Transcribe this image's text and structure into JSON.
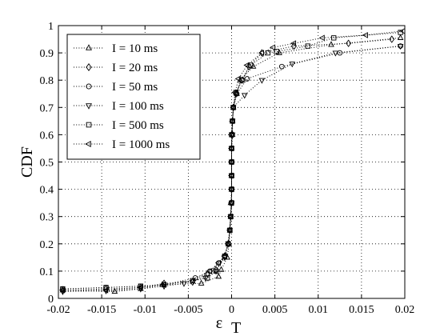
{
  "chart_data": {
    "type": "line",
    "title": "",
    "xlabel": "ε",
    "xlabel_sub": "T",
    "ylabel": "CDF",
    "xlim": [
      -0.02,
      0.02
    ],
    "ylim": [
      0,
      1
    ],
    "xticks": [
      -0.02,
      -0.015,
      -0.01,
      -0.005,
      0,
      0.005,
      0.01,
      0.015,
      0.02
    ],
    "xtick_labels": [
      "-0.02",
      "-0.015",
      "-0.01",
      "-0.005",
      "0",
      "0.005",
      "0.01",
      "0.015",
      "0.02"
    ],
    "yticks": [
      0,
      0.1,
      0.2,
      0.3,
      0.4,
      0.5,
      0.6,
      0.7,
      0.8,
      0.9,
      1
    ],
    "ytick_labels": [
      "0",
      "0.1",
      "0.2",
      "0.3",
      "0.4",
      "0.5",
      "0.6",
      "0.7",
      "0.8",
      "0.9",
      "1"
    ],
    "grid": true,
    "legend_position": "top-left",
    "series": [
      {
        "name": "I = 10 ms",
        "marker": "triangle-up",
        "points": [
          [
            -0.0195,
            0.03
          ],
          [
            -0.0135,
            0.025
          ],
          [
            -0.0105,
            0.035
          ],
          [
            -0.008,
            0.05
          ],
          [
            -0.0035,
            0.055
          ],
          [
            -0.0015,
            0.08
          ],
          [
            -0.0012,
            0.105
          ],
          [
            -0.0005,
            0.15
          ],
          [
            -0.0003,
            0.2
          ],
          [
            -0.0002,
            0.25
          ],
          [
            -0.0001,
            0.3
          ],
          [
            -0.0001,
            0.35
          ],
          [
            0,
            0.4
          ],
          [
            0,
            0.45
          ],
          [
            0,
            0.5
          ],
          [
            0,
            0.55
          ],
          [
            0.0001,
            0.6
          ],
          [
            0.0001,
            0.65
          ],
          [
            0.0002,
            0.7
          ],
          [
            0.0006,
            0.75
          ],
          [
            0.001,
            0.8
          ],
          [
            0.0025,
            0.85
          ],
          [
            0.0055,
            0.9
          ],
          [
            0.0115,
            0.93
          ],
          [
            0.0195,
            0.955
          ]
        ]
      },
      {
        "name": "I = 20 ms",
        "marker": "diamond",
        "points": [
          [
            -0.0195,
            0.03
          ],
          [
            -0.0145,
            0.035
          ],
          [
            -0.0105,
            0.04
          ],
          [
            -0.0078,
            0.055
          ],
          [
            -0.0045,
            0.06
          ],
          [
            -0.0028,
            0.09
          ],
          [
            -0.0018,
            0.105
          ],
          [
            -0.0008,
            0.155
          ],
          [
            -0.0004,
            0.2
          ],
          [
            -0.0002,
            0.25
          ],
          [
            -0.0001,
            0.3
          ],
          [
            0,
            0.35
          ],
          [
            0,
            0.4
          ],
          [
            0,
            0.45
          ],
          [
            0,
            0.5
          ],
          [
            0,
            0.55
          ],
          [
            0,
            0.6
          ],
          [
            0.0001,
            0.65
          ],
          [
            0.0002,
            0.7
          ],
          [
            0.0005,
            0.75
          ],
          [
            0.0012,
            0.8
          ],
          [
            0.002,
            0.85
          ],
          [
            0.0035,
            0.9
          ],
          [
            0.0072,
            0.925
          ],
          [
            0.0135,
            0.935
          ],
          [
            0.0185,
            0.95
          ]
        ]
      },
      {
        "name": "I = 50 ms",
        "marker": "circle",
        "points": [
          [
            -0.0195,
            0.035
          ],
          [
            -0.0145,
            0.04
          ],
          [
            -0.0105,
            0.045
          ],
          [
            -0.0078,
            0.05
          ],
          [
            -0.0042,
            0.075
          ],
          [
            -0.0025,
            0.1
          ],
          [
            -0.0015,
            0.13
          ],
          [
            -0.0008,
            0.155
          ],
          [
            -0.0004,
            0.2
          ],
          [
            -0.0002,
            0.25
          ],
          [
            -0.0001,
            0.3
          ],
          [
            0,
            0.35
          ],
          [
            0,
            0.4
          ],
          [
            0,
            0.45
          ],
          [
            0,
            0.5
          ],
          [
            0,
            0.55
          ],
          [
            0,
            0.6
          ],
          [
            0.0001,
            0.65
          ],
          [
            0.0002,
            0.7
          ],
          [
            0.0006,
            0.75
          ],
          [
            0.0018,
            0.805
          ],
          [
            0.0058,
            0.85
          ],
          [
            0.0125,
            0.9
          ],
          [
            0.0195,
            0.925
          ]
        ]
      },
      {
        "name": "I = 100 ms",
        "marker": "triangle-down",
        "points": [
          [
            -0.0195,
            0.025
          ],
          [
            -0.0145,
            0.028
          ],
          [
            -0.0105,
            0.035
          ],
          [
            -0.0078,
            0.045
          ],
          [
            -0.0055,
            0.055
          ],
          [
            -0.003,
            0.075
          ],
          [
            -0.0018,
            0.1
          ],
          [
            -0.0008,
            0.15
          ],
          [
            -0.0004,
            0.2
          ],
          [
            -0.0002,
            0.25
          ],
          [
            -0.0001,
            0.3
          ],
          [
            0,
            0.35
          ],
          [
            0,
            0.4
          ],
          [
            0,
            0.45
          ],
          [
            0,
            0.5
          ],
          [
            0,
            0.55
          ],
          [
            0.0001,
            0.6
          ],
          [
            0.0001,
            0.65
          ],
          [
            0.0002,
            0.7
          ],
          [
            0.0015,
            0.745
          ],
          [
            0.0035,
            0.8
          ],
          [
            0.007,
            0.86
          ],
          [
            0.012,
            0.9
          ],
          [
            0.0195,
            0.925
          ]
        ]
      },
      {
        "name": "I = 500 ms",
        "marker": "square",
        "points": [
          [
            -0.0195,
            0.035
          ],
          [
            -0.0145,
            0.04
          ],
          [
            -0.0105,
            0.045
          ],
          [
            -0.0078,
            0.05
          ],
          [
            -0.0045,
            0.065
          ],
          [
            -0.0028,
            0.075
          ],
          [
            -0.0018,
            0.1
          ],
          [
            -0.0008,
            0.155
          ],
          [
            -0.0004,
            0.2
          ],
          [
            -0.0002,
            0.25
          ],
          [
            -0.0001,
            0.3
          ],
          [
            0,
            0.35
          ],
          [
            0,
            0.4
          ],
          [
            0,
            0.45
          ],
          [
            0,
            0.5
          ],
          [
            0,
            0.55
          ],
          [
            0,
            0.6
          ],
          [
            0.0001,
            0.65
          ],
          [
            0.0002,
            0.7
          ],
          [
            0.0005,
            0.755
          ],
          [
            0.0012,
            0.8
          ],
          [
            0.0022,
            0.855
          ],
          [
            0.0042,
            0.9
          ],
          [
            0.0052,
            0.905
          ],
          [
            0.0088,
            0.925
          ],
          [
            0.0118,
            0.955
          ],
          [
            0.0195,
            0.975
          ]
        ]
      },
      {
        "name": "I = 1000 ms",
        "marker": "triangle-left",
        "points": [
          [
            -0.0195,
            0.03
          ],
          [
            -0.0145,
            0.03
          ],
          [
            -0.0105,
            0.04
          ],
          [
            -0.0078,
            0.05
          ],
          [
            -0.0045,
            0.065
          ],
          [
            -0.0025,
            0.1
          ],
          [
            -0.0015,
            0.13
          ],
          [
            -0.0008,
            0.155
          ],
          [
            -0.0004,
            0.2
          ],
          [
            -0.0002,
            0.25
          ],
          [
            -0.0001,
            0.3
          ],
          [
            0,
            0.35
          ],
          [
            0,
            0.4
          ],
          [
            0,
            0.45
          ],
          [
            0,
            0.5
          ],
          [
            0,
            0.55
          ],
          [
            0,
            0.6
          ],
          [
            0.0001,
            0.65
          ],
          [
            0.0002,
            0.7
          ],
          [
            0.0004,
            0.755
          ],
          [
            0.0008,
            0.805
          ],
          [
            0.0018,
            0.855
          ],
          [
            0.0035,
            0.9
          ],
          [
            0.0048,
            0.92
          ],
          [
            0.0072,
            0.935
          ],
          [
            0.0105,
            0.955
          ],
          [
            0.0155,
            0.965
          ],
          [
            0.0198,
            0.98
          ]
        ]
      }
    ]
  }
}
